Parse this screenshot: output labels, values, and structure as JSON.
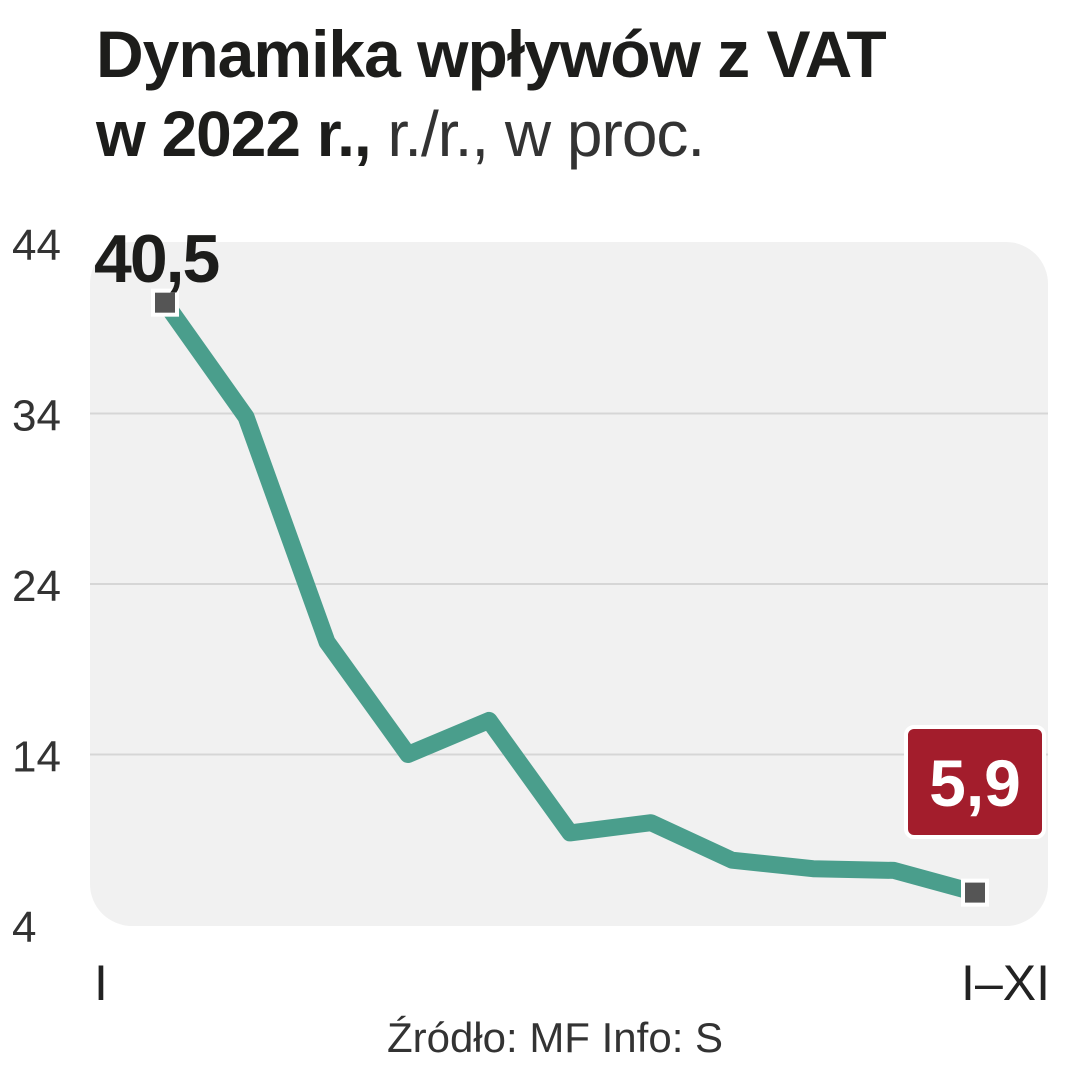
{
  "title": {
    "line1": "Dynamika wpływów z VAT",
    "line2_bold": "w 2022 r.,",
    "line2_light": " r./r., w proc."
  },
  "colors": {
    "line": "#4a9e8c",
    "panel": "#f1f1f1",
    "grid": "#d6d6d6",
    "marker": "#555555",
    "badge": "#a31d2c",
    "text": "#1d1d1b"
  },
  "chart_data": {
    "type": "line",
    "x_start_label": "I",
    "x_end_label": "I–XI",
    "values": [
      40.5,
      33.8,
      20.6,
      14.0,
      16.0,
      9.4,
      10.0,
      7.8,
      7.3,
      7.2,
      5.9
    ],
    "ylim": [
      4,
      44
    ],
    "yticks": [
      4,
      14,
      24,
      34,
      44
    ],
    "grid": true,
    "first_label": "40,5",
    "last_label": "5,9"
  },
  "source": "Źródło: MF   Info: S"
}
